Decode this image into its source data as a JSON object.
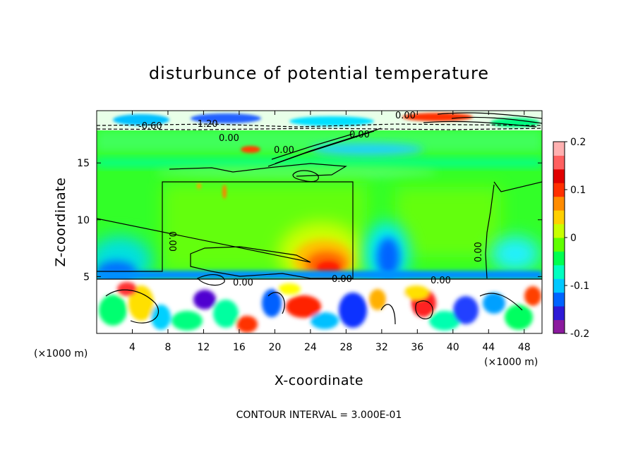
{
  "chart_data": {
    "type": "heatmap",
    "title": "disturbunce of potential temperature",
    "xlabel": "X-coordinate",
    "ylabel": "Z-coordinate",
    "x_unit": "(×1000 m)",
    "y_unit": "(×1000 m)",
    "xlim": [
      0,
      50
    ],
    "ylim": [
      0,
      19.6
    ],
    "x_ticks": [
      "4",
      "8",
      "12",
      "16",
      "20",
      "24",
      "28",
      "32",
      "36",
      "40",
      "44",
      "48"
    ],
    "x_tick_values": [
      4,
      8,
      12,
      16,
      20,
      24,
      28,
      32,
      36,
      40,
      44,
      48
    ],
    "y_ticks": [
      "5",
      "10",
      "15"
    ],
    "y_tick_values": [
      5,
      10,
      15
    ],
    "colorbar": {
      "range": [
        -0.2,
        0.2
      ],
      "ticks": [
        "0.2",
        "0.1",
        "0",
        "-0.1",
        "-0.2"
      ],
      "tick_values": [
        0.2,
        0.1,
        0,
        -0.1,
        -0.2
      ],
      "colors": [
        "#8b1a9e",
        "#2e1ad6",
        "#0064ff",
        "#00c8ff",
        "#00ffc0",
        "#00ff50",
        "#60ff00",
        "#c8ff00",
        "#ffd000",
        "#ff8c00",
        "#ff3000",
        "#e00000",
        "#ff6060",
        "#ffb0b0"
      ]
    },
    "contour_labels": [
      "-0.60",
      "-1.20",
      "0.00",
      "0.00",
      "0.00",
      "0.00",
      "0.00",
      "0.00",
      "0.00",
      "0.00",
      "0.00"
    ],
    "annotation": "CONTOUR INTERVAL = 3.000E-01",
    "features": [
      {
        "name": "warm anomaly",
        "x": 25.5,
        "z": 6,
        "value": 0.18
      },
      {
        "name": "cold anomaly",
        "x": 32.8,
        "z": 7.5,
        "value": -0.1
      },
      {
        "name": "cold band",
        "x": 25,
        "z": 16.2,
        "value": -0.06
      },
      {
        "name": "cold pocket",
        "x": 47,
        "z": 6.5,
        "value": -0.07
      }
    ]
  }
}
